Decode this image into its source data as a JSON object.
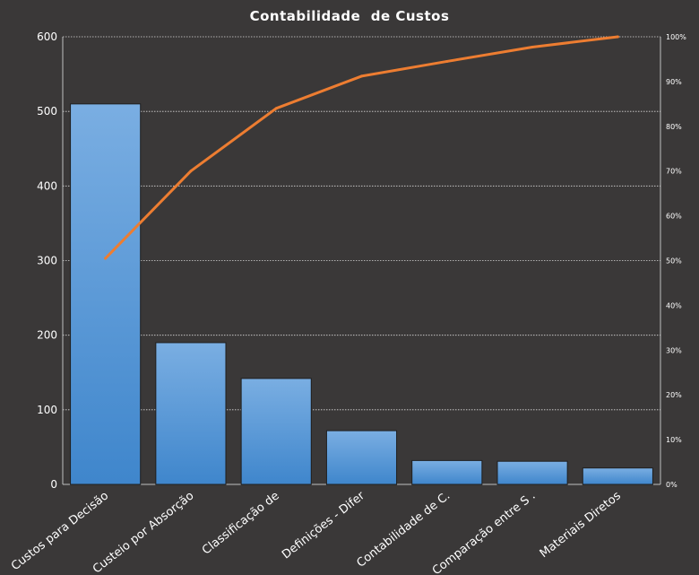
{
  "chart_data": {
    "type": "bar",
    "title": "Contabilidade  de Custos",
    "categories": [
      "Custos para Decisão",
      "Custeio por Absorção",
      "Classificação de",
      "Definições - Difer",
      "Contabilidade de C.",
      "Comparação entre S .",
      "Materiais Diretos"
    ],
    "series": [
      {
        "type": "bar",
        "values": [
          510,
          190,
          142,
          72,
          32,
          31,
          22
        ]
      },
      {
        "type": "line",
        "axis": "secondary",
        "values": [
          50.5,
          70,
          84,
          91.2,
          94.5,
          97.7,
          100
        ]
      }
    ],
    "ylim": [
      0,
      600
    ],
    "yticks": [
      "0",
      "100",
      "200",
      "300",
      "400",
      "500",
      "600"
    ],
    "y2lim": [
      0,
      100
    ],
    "y2ticks": [
      "0%",
      "10%",
      "20%",
      "30%",
      "40%",
      "50%",
      "60%",
      "70%",
      "80%",
      "90%",
      "100%"
    ],
    "grid": true,
    "legend": "none",
    "colors": {
      "bar": "#5b9bd5",
      "line": "#ed7d31",
      "background": "#3a3838",
      "text": "#ffffff"
    }
  }
}
